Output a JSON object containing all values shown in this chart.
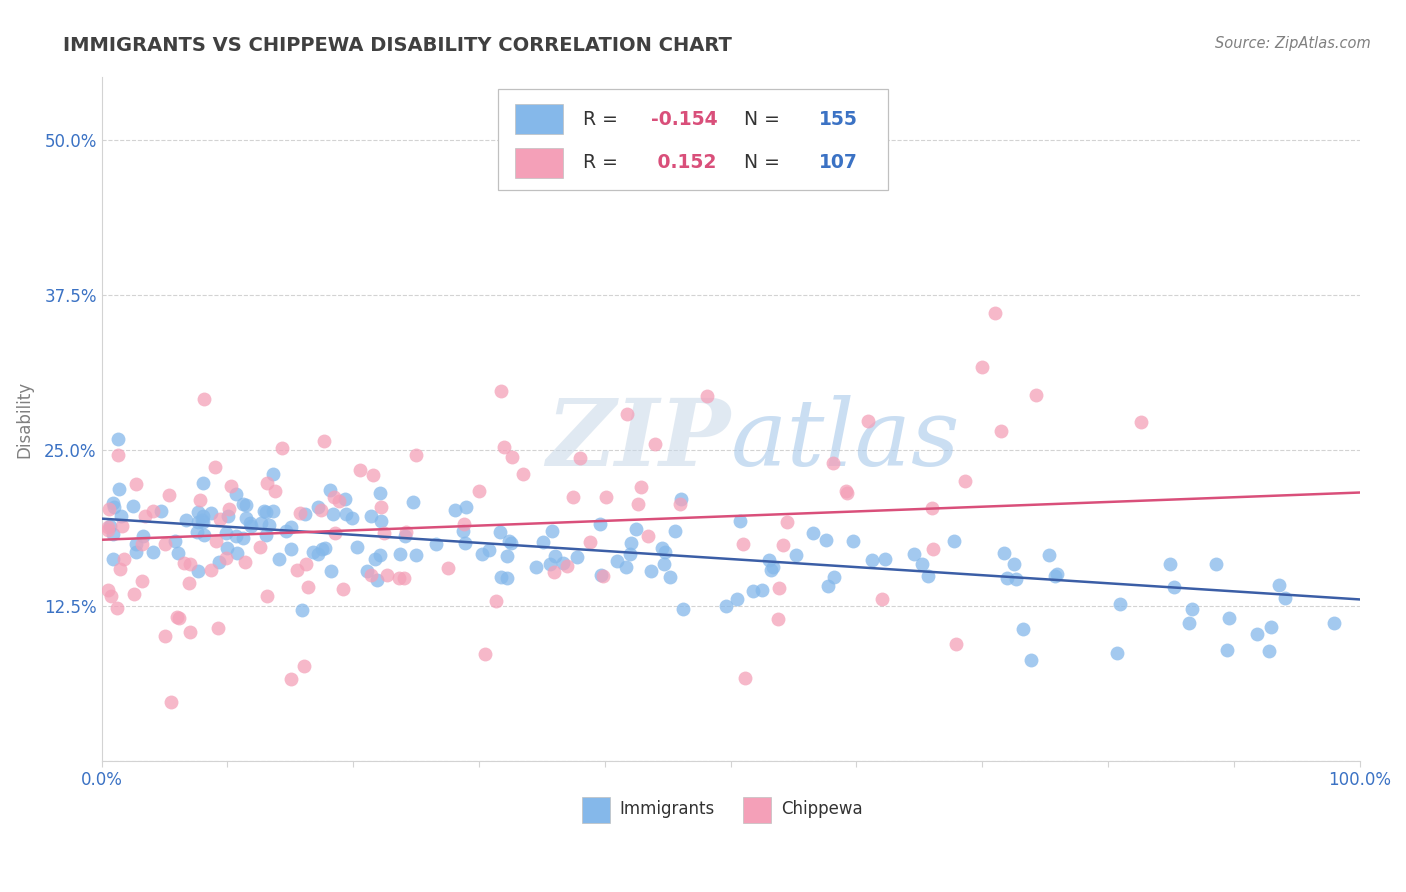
{
  "title": "IMMIGRANTS VS CHIPPEWA DISABILITY CORRELATION CHART",
  "source_text": "Source: ZipAtlas.com",
  "ylabel": "Disability",
  "xlim": [
    0,
    1.0
  ],
  "ylim": [
    0,
    0.55
  ],
  "yticks": [
    0.0,
    0.125,
    0.25,
    0.375,
    0.5
  ],
  "ytick_labels": [
    "",
    "12.5%",
    "25.0%",
    "37.5%",
    "50.0%"
  ],
  "blue_color": "#85B8EA",
  "pink_color": "#F4A0B8",
  "blue_line_color": "#3B5EA6",
  "pink_line_color": "#D94F7A",
  "R_blue": -0.154,
  "N_blue": 155,
  "R_pink": 0.152,
  "N_pink": 107,
  "legend_R_color": "#D94F7A",
  "legend_N_color": "#3B72C4",
  "title_color": "#404040",
  "seed_blue": 7,
  "seed_pink": 13
}
